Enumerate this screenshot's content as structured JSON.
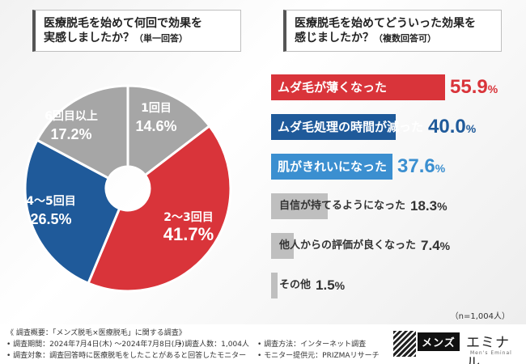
{
  "left_question": {
    "title": "医療脱毛を始めて何回で効果を",
    "title2": "実感しましたか？",
    "note": "（単一回答）"
  },
  "right_question": {
    "title": "医療脱毛を始めてどういった効果を",
    "title2": "感じましたか？",
    "note": "（複数回答可）"
  },
  "chart_data": [
    {
      "type": "pie",
      "title": "医療脱毛を始めて何回で効果を実感しましたか？（単一回答）",
      "categories": [
        "1回目",
        "2〜3回目",
        "4〜5回目",
        "6回目以上"
      ],
      "values": [
        14.6,
        41.7,
        26.5,
        17.2
      ],
      "value_labels": [
        "14.6%",
        "41.7%",
        "26.5%",
        "17.2%"
      ],
      "colors": [
        "#a6a6a6",
        "#d9343a",
        "#1f5a9a",
        "#a6a6a6"
      ],
      "unit": "%"
    },
    {
      "type": "bar",
      "orientation": "horizontal",
      "title": "医療脱毛を始めてどういった効果を感じましたか？（複数回答可）",
      "categories": [
        "ムダ毛が薄くなった",
        "ムダ毛処理の時間が減った",
        "肌がきれいになった",
        "自信が持てるようになった",
        "他人からの評価が良くなった",
        "その他"
      ],
      "values": [
        55.9,
        40.0,
        37.6,
        18.3,
        7.4,
        1.5
      ],
      "value_labels": [
        "55.9",
        "40.0",
        "37.6",
        "18.3",
        "7.4",
        "1.5"
      ],
      "unit": "%",
      "colors": [
        "#d9343a",
        "#1f5a9a",
        "#3b8fd0",
        "#bfbfbf",
        "#bfbfbf",
        "#bfbfbf"
      ],
      "value_colors": [
        "#d9343a",
        "#1f5a9a",
        "#3b8fd0",
        "#333333",
        "#333333",
        "#333333"
      ],
      "label_colors": [
        "#ffffff",
        "#ffffff",
        "#ffffff",
        "#333333",
        "#333333",
        "#333333"
      ],
      "xlim": [
        0,
        55.9
      ]
    }
  ],
  "sample_note": "（n=1,004人）",
  "footer": {
    "line1": "《 調査概要：「メンズ脱毛×医療脱毛」に関する調査》",
    "line2a": "• 調査期間：2024年7月4日(木) 〜2024年7月8日(月)",
    "line2b": "• 調査人数：1,004人",
    "line2c": "• 調査方法：インターネット調査",
    "line3a": "• 調査対象：調査回答時に医療脱毛をしたことがあると回答したモニター",
    "line3b": "• モニター提供元：PRIZMAリサーチ"
  },
  "brand": {
    "mens": "メンズ",
    "name": "エミナル",
    "tagline": "Men's Eminal"
  }
}
